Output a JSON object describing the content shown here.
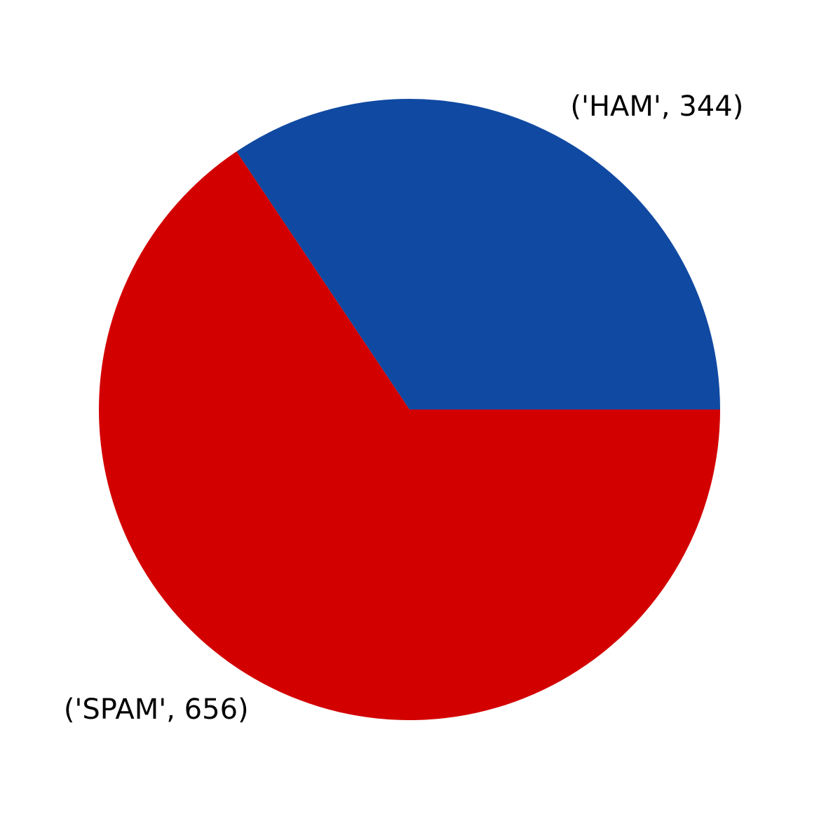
{
  "chart_data": {
    "type": "pie",
    "title": "",
    "slices": [
      {
        "label": "('HAM', 344)",
        "value": 344,
        "color": "#1049a1"
      },
      {
        "label": "('SPAM', 656)",
        "value": 656,
        "color": "#d30000"
      }
    ],
    "start_angle_deg": 0,
    "direction": "counterclockwise",
    "legend": "none"
  }
}
